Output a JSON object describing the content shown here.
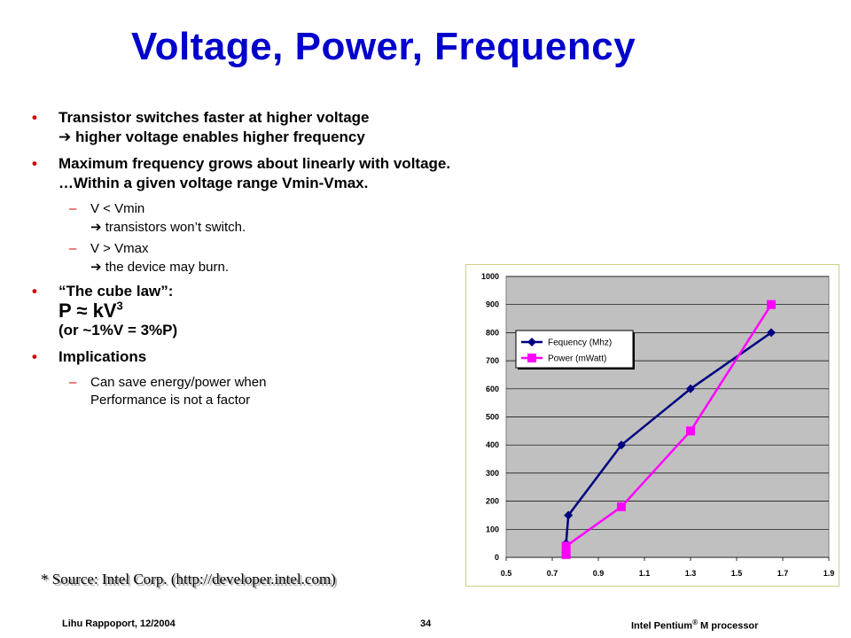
{
  "slide": {
    "title": "Voltage, Power, Frequency",
    "bullets": [
      {
        "line1": "Transistor switches faster at higher voltage",
        "arrow": "➔",
        "line2": " higher voltage enables higher frequency"
      },
      {
        "line1": "Maximum frequency grows about linearly with voltage.",
        "line2": "…Within a given voltage range Vmin-Vmax."
      },
      {
        "line1": "“The cube law”:",
        "formula_p": "P",
        "formula_approx": "≈",
        "formula_k": "kV",
        "formula_exp": "3",
        "line3": "(or ~1%V = 3%P)"
      },
      {
        "line1": "Implications"
      }
    ],
    "sub_bullets": [
      {
        "line1": "V < Vmin",
        "arrow": "➔",
        "line2": " transistors won’t switch."
      },
      {
        "line1": "V > Vmax",
        "arrow": "➔",
        "line2": " the device may burn."
      },
      {
        "line1": "Can save energy/power when",
        "line2": "Performance is not a factor"
      }
    ],
    "source": "* Source: Intel Corp. (http://developer.intel.com)",
    "footer_left": "Lihu Rappoport,  12/2004",
    "footer_page": "34",
    "footer_right_pre": "Intel Pentium",
    "footer_right_reg": "®",
    "footer_right_post": " M processor"
  },
  "colors": {
    "title": "#0000cc",
    "bullet": "#cc0000",
    "plot_bg": "#c0c0c0",
    "freq": "#000080",
    "power": "#ff00ff"
  },
  "chart_data": {
    "type": "line",
    "xlim": [
      0.5,
      1.9
    ],
    "ylim": [
      0,
      1000
    ],
    "x_ticks": [
      "0.5",
      "0.7",
      "0.9",
      "1.1",
      "1.3",
      "1.5",
      "1.7",
      "1.9"
    ],
    "y_ticks": [
      "0",
      "100",
      "200",
      "300",
      "400",
      "500",
      "600",
      "700",
      "800",
      "900",
      "1000"
    ],
    "legend_position": "upper-left",
    "series": [
      {
        "name": "Fequency (Mhz)",
        "marker": "diamond",
        "points": [
          [
            0.76,
            10
          ],
          [
            0.76,
            50
          ],
          [
            0.77,
            150
          ],
          [
            1.0,
            400
          ],
          [
            1.3,
            600
          ],
          [
            1.65,
            800
          ]
        ]
      },
      {
        "name": "Power  (mWatt)",
        "marker": "square",
        "points": [
          [
            0.76,
            10
          ],
          [
            0.76,
            20
          ],
          [
            0.76,
            40
          ],
          [
            1.0,
            180
          ],
          [
            1.3,
            450
          ],
          [
            1.65,
            900
          ]
        ]
      }
    ]
  }
}
